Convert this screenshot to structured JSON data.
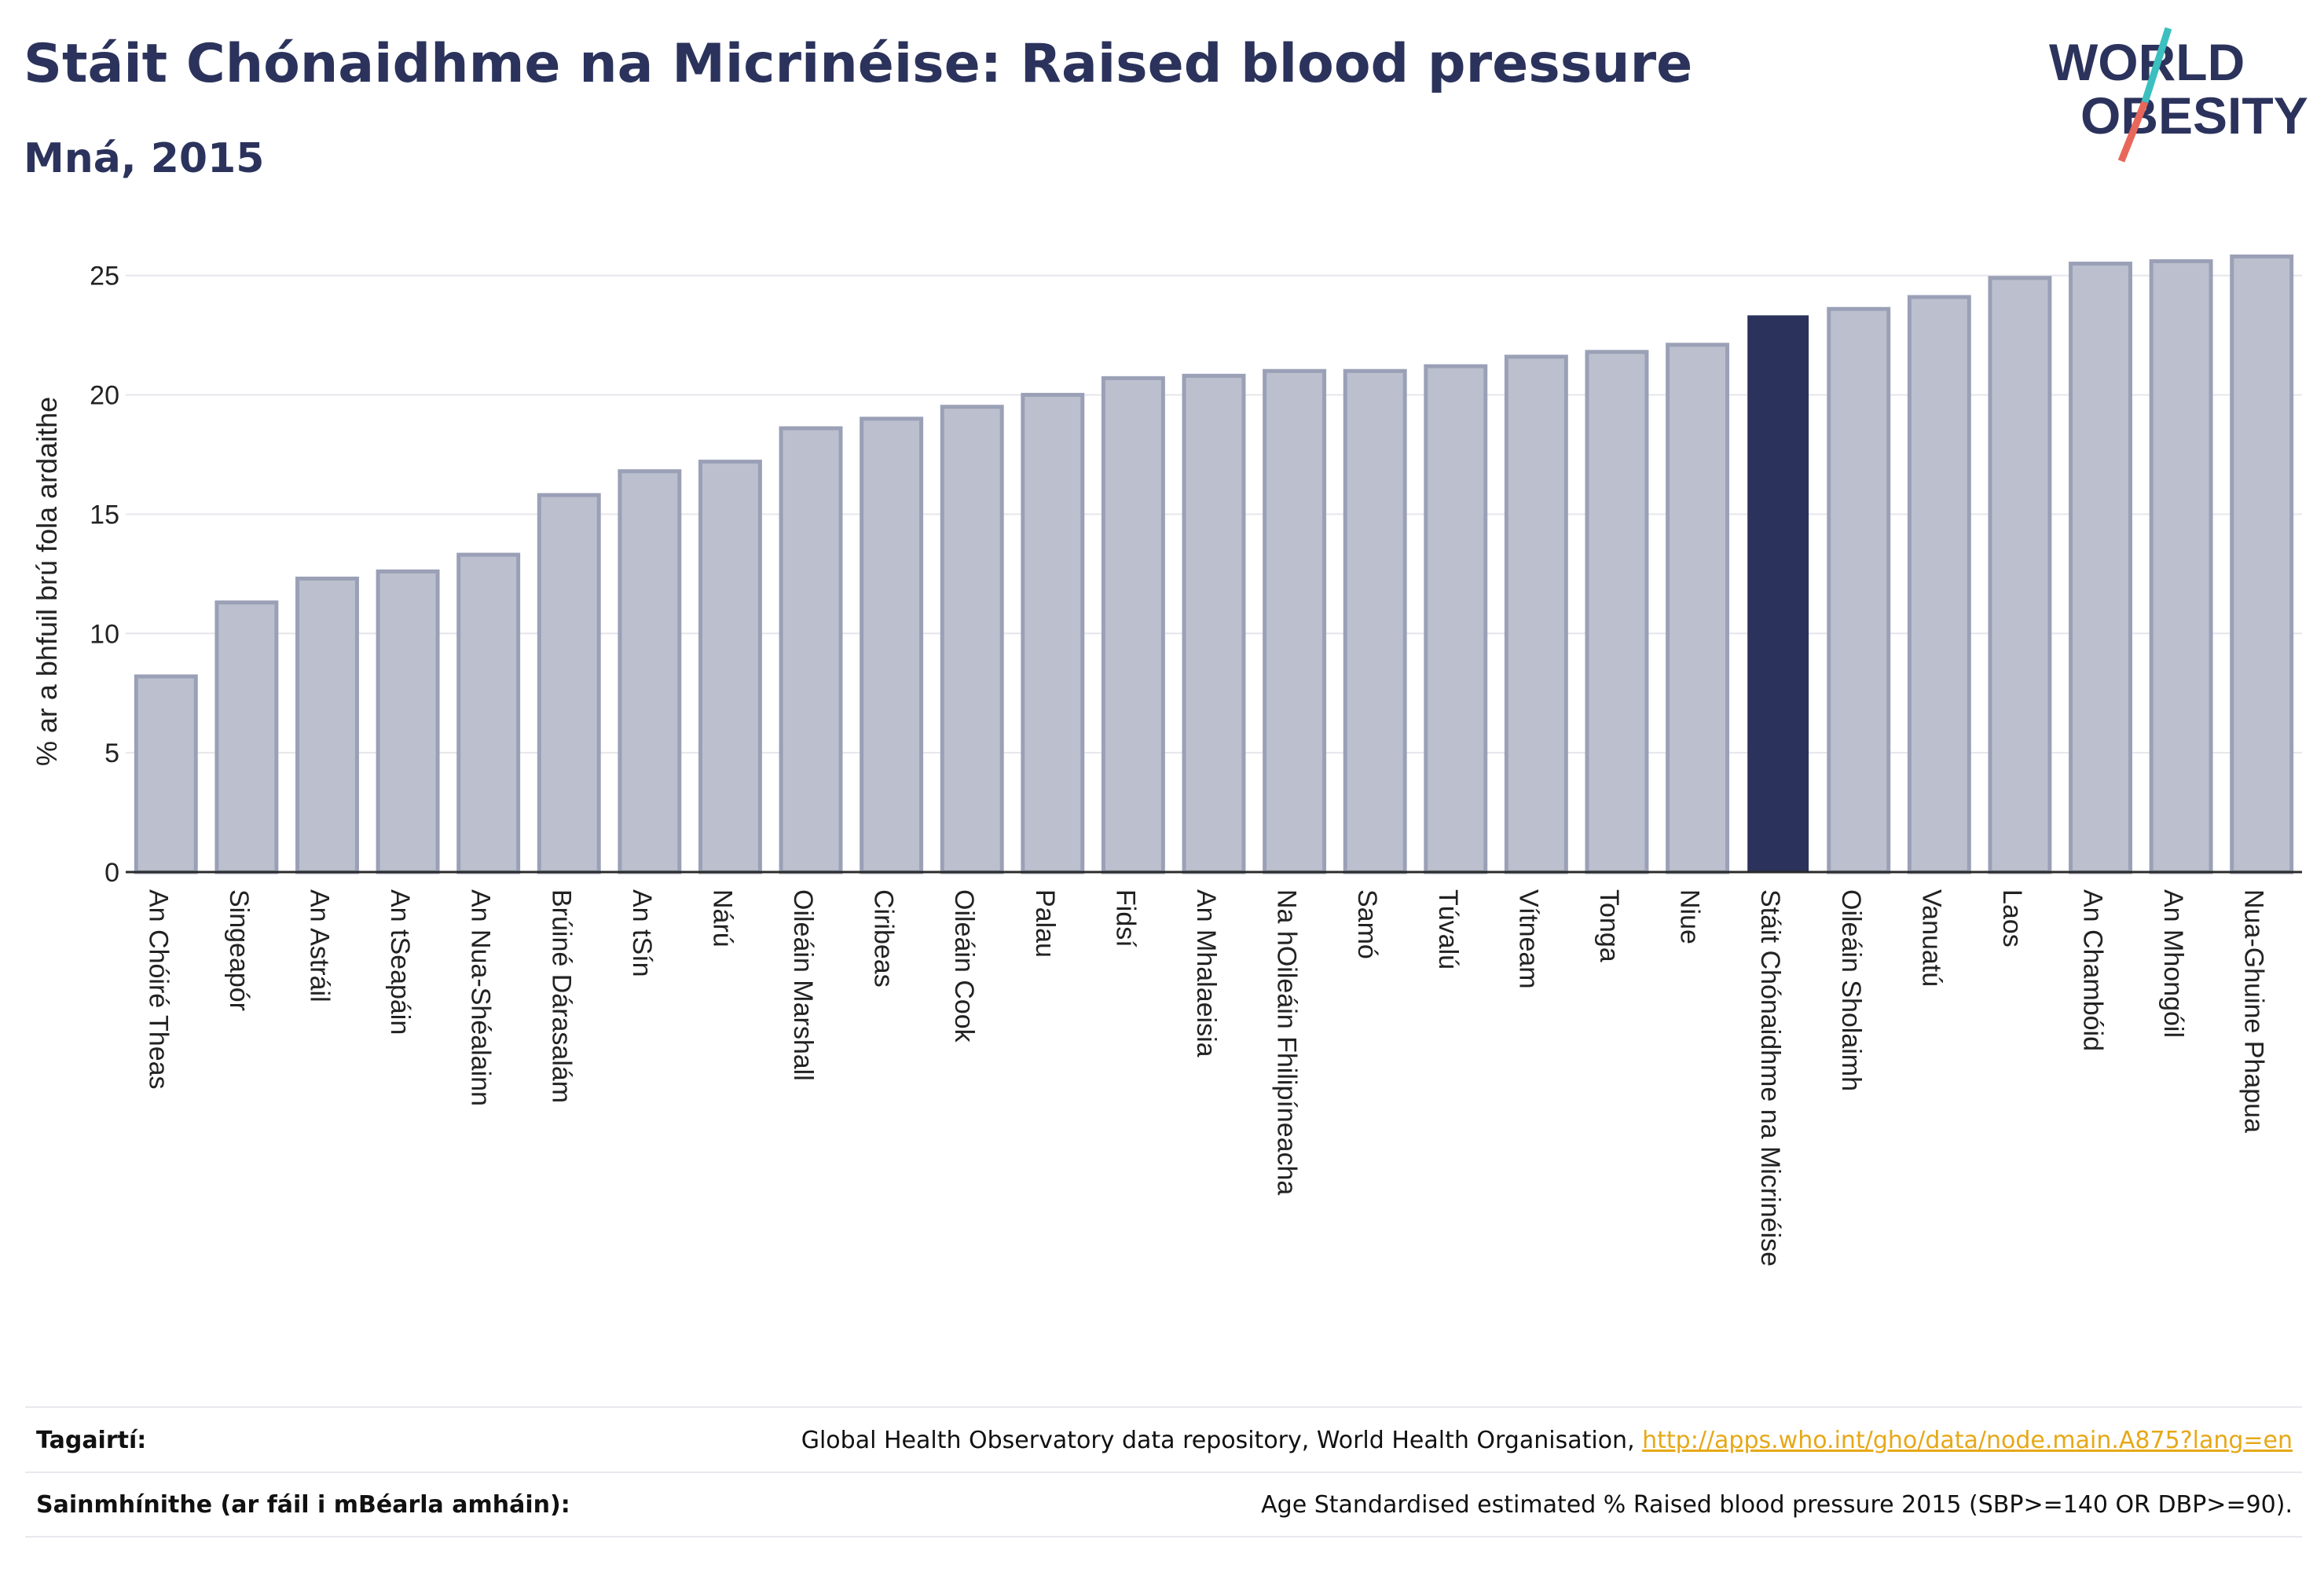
{
  "header": {
    "title": "Stáit Chónaidhme na Micrinéise: Raised blood pressure",
    "subtitle": "Mná, 2015"
  },
  "logo": {
    "line1": "WORLD",
    "line2": "OBESITY"
  },
  "colors": {
    "bar": "#bcc0ce",
    "bar_stroke": "#9aa0b6",
    "highlight": "#2b335c",
    "grid": "#e6e6ec",
    "text": "#2b335c",
    "link": "#e6a817",
    "logo_teal": "#3bbfbf",
    "logo_red": "#e8675a"
  },
  "chart_data": {
    "type": "bar",
    "ylabel": "% ar a bhfuil brú fola ardaithe",
    "ylim": [
      0,
      27
    ],
    "yticks": [
      0,
      5,
      10,
      15,
      20,
      25
    ],
    "grid": true,
    "highlight_category": "Stáit Chónaidhme na Micrinéise",
    "categories": [
      "An Chóiré Theas",
      "Singeapór",
      "An Astráil",
      "An tSeapáin",
      "An Nua-Shéalainn",
      "Brúiné Dárasalám",
      "An tSín",
      "Nárú",
      "Oileáin Marshall",
      "Ciribeas",
      "Oileáin Cook",
      "Palau",
      "Fidsí",
      "An Mhalaeisia",
      "Na hOileáin Fhilipíneacha",
      "Samó",
      "Túvalú",
      "Vítneam",
      "Tonga",
      "Niue",
      "Stáit Chónaidhme na Micrinéise",
      "Oileáin Sholaimh",
      "Vanuatú",
      "Laos",
      "An Chambóid",
      "An Mhongóil",
      "Nua-Ghuine Phapua"
    ],
    "values": [
      8.2,
      11.3,
      12.3,
      12.6,
      13.3,
      15.8,
      16.8,
      17.2,
      18.6,
      19.0,
      19.5,
      20.0,
      20.7,
      20.8,
      21.0,
      21.0,
      21.2,
      21.6,
      21.8,
      22.1,
      23.3,
      23.6,
      24.1,
      24.9,
      25.5,
      25.6,
      25.8
    ]
  },
  "footer": {
    "references_label": "Tagairtí:",
    "references_text": "Global Health Observatory data repository, World Health Organisation, ",
    "references_link": "http://apps.who.int/gho/data/node.main.A875?lang=en",
    "definitions_label": "Sainmhínithe (ar fáil i mBéarla amháin):",
    "definitions_text": "Age Standardised estimated % Raised blood pressure 2015 (SBP>=140 OR DBP>=90)."
  }
}
